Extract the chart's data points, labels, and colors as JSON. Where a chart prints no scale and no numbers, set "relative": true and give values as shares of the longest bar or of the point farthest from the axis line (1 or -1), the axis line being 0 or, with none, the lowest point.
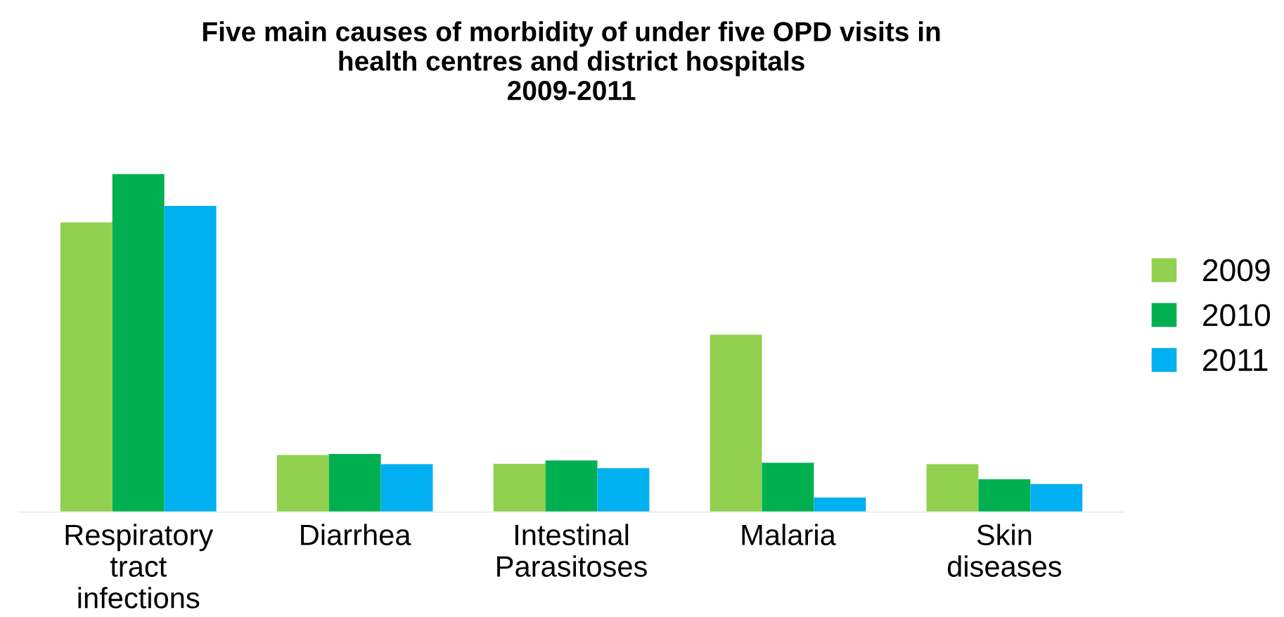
{
  "chart_data": {
    "type": "bar",
    "title": "Five main causes of morbidity of under five OPD visits in\nhealth centres and district hospitals\n2009-2011",
    "relative": true,
    "legend": "right",
    "categories": [
      "Respiratory\ntract\ninfections",
      "Diarrhea",
      "Intestinal\nParasitoses",
      "Malaria",
      "Skin\ndiseases"
    ],
    "series": [
      {
        "name": "2009",
        "color": "#92d050",
        "values": [
          0.857,
          0.169,
          0.143,
          0.525,
          0.142
        ]
      },
      {
        "name": "2010",
        "color": "#00b050",
        "values": [
          1,
          0.172,
          0.153,
          0.146,
          0.097
        ]
      },
      {
        "name": "2011",
        "color": "#00b0f0",
        "values": [
          0.906,
          0.142,
          0.13,
          0.043,
          0.083
        ]
      }
    ]
  }
}
